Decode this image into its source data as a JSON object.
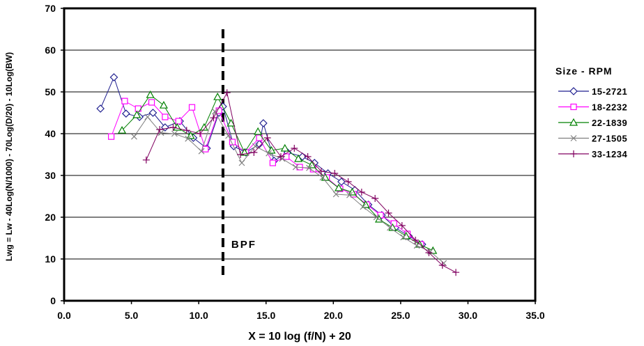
{
  "chart_data": {
    "type": "line",
    "title": "",
    "xlabel": "X = 10 log (f/N) + 20",
    "ylabel": "Lwg = Lw - 40Log(N/1000) - 70Log(D/20) - 10Log(BW)",
    "xlim": [
      0,
      35
    ],
    "ylim": [
      0,
      70
    ],
    "xticks": [
      "0.0",
      "5.0",
      "10.0",
      "15.0",
      "20.0",
      "25.0",
      "30.0",
      "35.0"
    ],
    "yticks": [
      "0",
      "10",
      "20",
      "30",
      "40",
      "50",
      "60",
      "70"
    ],
    "grid": "horizontal",
    "legend": {
      "title": "Size - RPM",
      "position": "right"
    },
    "annotation": {
      "text": "BPF",
      "line_x": 11.8,
      "line_y_range": [
        5,
        65
      ]
    },
    "series": [
      {
        "name": "15-2721",
        "color": "#1f1f8f",
        "marker": "diamond",
        "x": [
          2.7,
          3.7,
          4.6,
          5.6,
          6.6,
          7.5,
          8.6,
          9.6,
          10.6,
          11.5,
          11.8,
          12.6,
          13.5,
          14.5,
          14.8,
          15.6,
          16.6,
          17.7,
          18.6,
          19.6,
          20.6,
          21.6,
          22.6,
          23.6,
          24.6,
          25.6,
          26.6
        ],
        "y": [
          46,
          53.5,
          44.8,
          44,
          45,
          41.5,
          43,
          39,
          36.5,
          45,
          46.5,
          37,
          35.5,
          37.5,
          42.5,
          33.5,
          35.5,
          34.5,
          33,
          30.5,
          28.5,
          26.5,
          23,
          20.5,
          17.5,
          15.5,
          13.5
        ]
      },
      {
        "name": "18-2232",
        "color": "#ff00ff",
        "marker": "square",
        "x": [
          3.5,
          4.5,
          5.5,
          6.5,
          7.5,
          8.5,
          9.5,
          10.5,
          11.5,
          12.5,
          13.5,
          14.5,
          15.5,
          16.5,
          17.5,
          18.5,
          19.5,
          20.5,
          21.5,
          22.5,
          23.5,
          24.5,
          25.5,
          26.5
        ],
        "y": [
          39.3,
          47.8,
          46,
          47.5,
          44,
          43,
          46.3,
          36.3,
          45.5,
          38,
          35.5,
          39,
          33,
          34.5,
          32,
          31.5,
          29.5,
          26.8,
          25.5,
          23,
          20.5,
          18.5,
          16,
          13.5
        ]
      },
      {
        "name": "22-1839",
        "color": "#008000",
        "marker": "triangle",
        "x": [
          4.3,
          5.4,
          6.4,
          7.4,
          8.4,
          9.4,
          10.4,
          11.4,
          12.4,
          13.4,
          14.4,
          15.4,
          16.4,
          17.4,
          18.4,
          19.4,
          20.4,
          21.4,
          22.4,
          23.4,
          24.4,
          25.4,
          26.4,
          27.4
        ],
        "y": [
          40.8,
          44.5,
          49.3,
          46.8,
          41.5,
          39.5,
          41.5,
          48.8,
          42.5,
          35.5,
          40.5,
          36,
          36.5,
          34,
          32.5,
          29.5,
          27,
          26,
          23,
          19.5,
          17.5,
          15.5,
          13.5,
          12
        ]
      },
      {
        "name": "27-1505",
        "color": "#808080",
        "marker": "x",
        "x": [
          5.2,
          6.2,
          7.2,
          8.2,
          9.2,
          10.2,
          11.2,
          12.2,
          13.2,
          14.2,
          15.2,
          16.2,
          17.2,
          18.2,
          19.2,
          20.2,
          21.2,
          22.2,
          23.2,
          24.2,
          25.2,
          26.2,
          27.2,
          28.2
        ],
        "y": [
          39.3,
          44,
          40.2,
          40,
          38.8,
          35.8,
          45.3,
          39.5,
          33,
          37,
          35.3,
          34,
          32,
          31.8,
          29.5,
          25.5,
          25.3,
          22.5,
          20,
          17.5,
          15.2,
          13.2,
          11.8,
          9
        ]
      },
      {
        "name": "33-1234",
        "color": "#800060",
        "marker": "plus",
        "x": [
          6.1,
          7.1,
          8.1,
          9.1,
          10.1,
          11.1,
          12.1,
          13.1,
          14.1,
          15.1,
          16.1,
          17.1,
          18.1,
          19.1,
          20.1,
          21.1,
          22.1,
          23.1,
          24.1,
          25.1,
          26.1,
          27.1,
          28.1,
          29.1
        ],
        "y": [
          33.7,
          41,
          41.5,
          40.8,
          40,
          43.8,
          49.8,
          35,
          35.5,
          39,
          34.5,
          36.5,
          34.5,
          31,
          30.5,
          28.5,
          26,
          24.5,
          21,
          18,
          14.5,
          11.5,
          8.5,
          6.8
        ]
      }
    ]
  }
}
